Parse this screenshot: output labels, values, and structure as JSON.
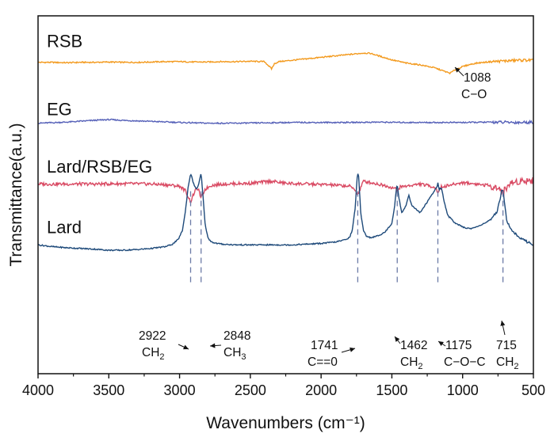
{
  "chart_data": {
    "type": "line",
    "xlabel": "Wavenumbers (cm⁻¹)",
    "ylabel": "Transmittance(a.u.)",
    "xlim": [
      4000,
      500
    ],
    "x_reversed": true,
    "x_ticks": [
      4000,
      3500,
      3000,
      2500,
      2000,
      1500,
      1000,
      500
    ],
    "y_ticks_shown": false,
    "grid": false,
    "series": [
      {
        "name": "RSB",
        "color": "#f39a1e",
        "label_pos": [
          4000,
          0.93
        ],
        "x": [
          4000,
          3900,
          3800,
          3700,
          3600,
          3500,
          3400,
          3300,
          3200,
          3100,
          3000,
          2900,
          2800,
          2700,
          2600,
          2500,
          2400,
          2370,
          2350,
          2330,
          2300,
          2200,
          2100,
          2000,
          1900,
          1800,
          1700,
          1650,
          1600,
          1500,
          1400,
          1300,
          1200,
          1150,
          1100,
          1088,
          1050,
          1000,
          950,
          900,
          800,
          700,
          600,
          500
        ],
        "y": [
          0.87,
          0.87,
          0.869,
          0.87,
          0.87,
          0.871,
          0.87,
          0.87,
          0.871,
          0.872,
          0.872,
          0.871,
          0.871,
          0.872,
          0.872,
          0.873,
          0.872,
          0.86,
          0.852,
          0.866,
          0.872,
          0.876,
          0.88,
          0.884,
          0.888,
          0.892,
          0.896,
          0.895,
          0.889,
          0.877,
          0.868,
          0.863,
          0.855,
          0.848,
          0.841,
          0.84,
          0.85,
          0.858,
          0.864,
          0.868,
          0.872,
          0.874,
          0.876,
          0.876
        ]
      },
      {
        "name": "EG",
        "color": "#5560b8",
        "label_pos": [
          4000,
          0.74
        ],
        "x": [
          4000,
          3800,
          3600,
          3500,
          3400,
          3200,
          3000,
          2800,
          2600,
          2400,
          2200,
          2000,
          1800,
          1600,
          1400,
          1200,
          1000,
          800,
          600,
          500
        ],
        "y": [
          0.7,
          0.703,
          0.708,
          0.71,
          0.708,
          0.705,
          0.702,
          0.7,
          0.7,
          0.701,
          0.702,
          0.702,
          0.702,
          0.703,
          0.702,
          0.702,
          0.702,
          0.703,
          0.702,
          0.703
        ]
      },
      {
        "name": "Lard/RSB/EG",
        "color": "#d94a63",
        "label_pos": [
          4000,
          0.58
        ],
        "x": [
          4000,
          3800,
          3600,
          3400,
          3200,
          3100,
          3000,
          2960,
          2922,
          2890,
          2870,
          2848,
          2820,
          2780,
          2700,
          2500,
          2350,
          2250,
          2100,
          1950,
          1800,
          1760,
          1741,
          1720,
          1700,
          1650,
          1550,
          1480,
          1462,
          1440,
          1300,
          1200,
          1175,
          1150,
          1000,
          900,
          800,
          730,
          715,
          700,
          650,
          600,
          550,
          500
        ],
        "y": [
          0.53,
          0.53,
          0.53,
          0.531,
          0.53,
          0.528,
          0.524,
          0.512,
          0.48,
          0.512,
          0.518,
          0.49,
          0.515,
          0.526,
          0.53,
          0.532,
          0.538,
          0.532,
          0.53,
          0.528,
          0.524,
          0.515,
          0.5,
          0.52,
          0.538,
          0.534,
          0.526,
          0.518,
          0.512,
          0.522,
          0.53,
          0.522,
          0.508,
          0.522,
          0.534,
          0.53,
          0.525,
          0.515,
          0.5,
          0.518,
          0.534,
          0.538,
          0.54,
          0.54
        ]
      },
      {
        "name": "Lard",
        "color": "#1e4a7a",
        "label_pos": [
          4000,
          0.41
        ],
        "x": [
          4000,
          3900,
          3800,
          3700,
          3600,
          3500,
          3400,
          3300,
          3200,
          3100,
          3050,
          3010,
          2980,
          2960,
          2940,
          2922,
          2900,
          2880,
          2865,
          2848,
          2835,
          2820,
          2800,
          2780,
          2750,
          2700,
          2600,
          2500,
          2400,
          2300,
          2200,
          2100,
          2000,
          1900,
          1850,
          1800,
          1780,
          1760,
          1745,
          1741,
          1735,
          1720,
          1700,
          1680,
          1650,
          1600,
          1550,
          1500,
          1480,
          1470,
          1462,
          1450,
          1430,
          1400,
          1380,
          1360,
          1300,
          1250,
          1200,
          1180,
          1175,
          1165,
          1150,
          1130,
          1110,
          1100,
          1050,
          1000,
          950,
          900,
          850,
          800,
          760,
          740,
          725,
          715,
          705,
          690,
          650,
          600,
          550,
          500
        ],
        "y": [
          0.36,
          0.355,
          0.352,
          0.35,
          0.348,
          0.345,
          0.345,
          0.347,
          0.35,
          0.355,
          0.362,
          0.375,
          0.4,
          0.45,
          0.52,
          0.56,
          0.53,
          0.515,
          0.53,
          0.56,
          0.5,
          0.42,
          0.38,
          0.37,
          0.365,
          0.362,
          0.36,
          0.36,
          0.36,
          0.36,
          0.36,
          0.362,
          0.364,
          0.368,
          0.372,
          0.38,
          0.4,
          0.46,
          0.55,
          0.562,
          0.55,
          0.45,
          0.4,
          0.385,
          0.38,
          0.385,
          0.395,
          0.42,
          0.47,
          0.51,
          0.53,
          0.49,
          0.45,
          0.47,
          0.5,
          0.47,
          0.45,
          0.48,
          0.51,
          0.525,
          0.532,
          0.515,
          0.52,
          0.48,
          0.45,
          0.44,
          0.42,
          0.41,
          0.405,
          0.41,
          0.42,
          0.43,
          0.45,
          0.48,
          0.51,
          0.515,
          0.48,
          0.43,
          0.4,
          0.38,
          0.37,
          0.36
        ]
      }
    ],
    "peak_lines": [
      2922,
      2848,
      1741,
      1462,
      1175,
      715
    ],
    "annotations": [
      {
        "main": "1088",
        "line2": "C−O",
        "sub": "",
        "x": 1088
      },
      {
        "main": "2922",
        "line2": "CH",
        "sub": "2",
        "x": 2922
      },
      {
        "main": "2848",
        "line2": "CH",
        "sub": "3",
        "x": 2848
      },
      {
        "main": "1741",
        "line2": "C==0",
        "sub": "",
        "x": 1741
      },
      {
        "main": "1462",
        "line2": "CH",
        "sub": "2",
        "x": 1462
      },
      {
        "main": "1175",
        "line2": "C−O−C",
        "sub": "",
        "x": 1175
      },
      {
        "main": "715",
        "line2": "CH",
        "sub": "2",
        "x": 715
      }
    ]
  }
}
